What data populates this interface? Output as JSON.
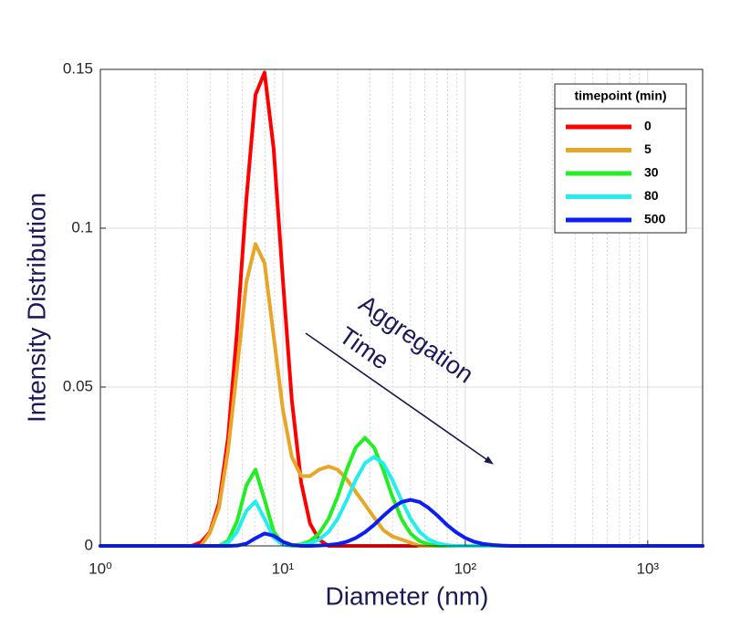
{
  "chart_data": {
    "type": "line",
    "xlabel": "Diameter (nm)",
    "ylabel": "Intensity Distribution",
    "xscale": "log",
    "grid": true,
    "legend_title": "timepoint (min)",
    "legend_position": "upper right",
    "annotation": [
      "Aggregation",
      "Time"
    ],
    "xlim": [
      1,
      2000
    ],
    "ylim": [
      0,
      0.15
    ],
    "xticks": [
      {
        "value": 1,
        "label": "10⁰"
      },
      {
        "value": 10,
        "label": "10¹"
      },
      {
        "value": 100,
        "label": "10²"
      },
      {
        "value": 1000,
        "label": "10³"
      }
    ],
    "xminorticks": [
      2,
      3,
      4,
      5,
      6,
      7,
      8,
      9,
      20,
      30,
      40,
      50,
      60,
      70,
      80,
      90,
      200,
      300,
      400,
      500,
      600,
      700,
      800,
      900
    ],
    "yticks": [
      0,
      0.05,
      0.1,
      0.15
    ],
    "x": [
      1,
      3.16,
      3.55,
      3.98,
      4.47,
      5.01,
      5.62,
      6.31,
      7.08,
      7.94,
      8.91,
      10,
      11.2,
      12.6,
      14.1,
      15.8,
      17.8,
      20,
      22.4,
      25.1,
      28.2,
      31.6,
      35.5,
      39.8,
      44.7,
      50.1,
      56.2,
      63.1,
      70.8,
      79.4,
      89.1,
      100,
      112,
      126,
      141,
      158,
      178,
      200,
      316,
      2000
    ],
    "series": [
      {
        "name": "0",
        "color": "#ff0000",
        "values": [
          0,
          0,
          0.0011,
          0.0043,
          0.0135,
          0.034,
          0.068,
          0.109,
          0.142,
          0.149,
          0.125,
          0.084,
          0.046,
          0.02,
          0.007,
          0.002,
          0,
          0,
          0,
          0,
          0,
          0,
          0,
          0,
          0,
          0,
          0,
          0,
          0,
          0,
          0,
          0,
          0,
          0,
          0,
          0,
          0,
          0,
          0,
          0
        ]
      },
      {
        "name": "5",
        "color": "#e8a628",
        "values": [
          0,
          0,
          0,
          0.004,
          0.012,
          0.03,
          0.056,
          0.083,
          0.095,
          0.089,
          0.066,
          0.043,
          0.028,
          0.022,
          0.022,
          0.024,
          0.025,
          0.024,
          0.021,
          0.017,
          0.013,
          0.009,
          0.005,
          0.003,
          0.002,
          0.001,
          0,
          0,
          0,
          0,
          0,
          0,
          0,
          0,
          0,
          0,
          0,
          0,
          0,
          0
        ]
      },
      {
        "name": "30",
        "color": "#22ee22",
        "values": [
          0,
          0,
          0,
          0,
          0,
          0.0016,
          0.0078,
          0.019,
          0.024,
          0.0146,
          0.0045,
          0.0007,
          0,
          0.0005,
          0.0015,
          0.0039,
          0.0085,
          0.0156,
          0.024,
          0.031,
          0.034,
          0.031,
          0.024,
          0.0156,
          0.0085,
          0.0039,
          0.0015,
          0.0005,
          0,
          0,
          0,
          0,
          0,
          0,
          0,
          0,
          0,
          0,
          0,
          0
        ]
      },
      {
        "name": "80",
        "color": "#22eeee",
        "values": [
          0,
          0,
          0,
          0,
          0,
          0.0009,
          0.0045,
          0.011,
          0.014,
          0.0085,
          0.0026,
          0.0004,
          0,
          0.0002,
          0.0008,
          0.002,
          0.0044,
          0.0086,
          0.0144,
          0.0208,
          0.026,
          0.028,
          0.026,
          0.0208,
          0.0144,
          0.0086,
          0.0044,
          0.002,
          0.0008,
          0.0002,
          0,
          0,
          0,
          0,
          0,
          0,
          0,
          0,
          0,
          0
        ]
      },
      {
        "name": "500",
        "color": "#0a1ef5",
        "values": [
          0,
          0,
          0,
          0,
          0,
          0,
          0.0001,
          0.0007,
          0.0024,
          0.0039,
          0.0032,
          0.0013,
          0.0003,
          0,
          0,
          0.0001,
          0.0003,
          0.0006,
          0.0013,
          0.0025,
          0.0043,
          0.0066,
          0.0094,
          0.0119,
          0.0138,
          0.0145,
          0.0138,
          0.0119,
          0.0094,
          0.0066,
          0.0043,
          0.0025,
          0.0013,
          0.0006,
          0.0003,
          0.0001,
          0,
          0,
          0,
          0
        ]
      }
    ]
  }
}
